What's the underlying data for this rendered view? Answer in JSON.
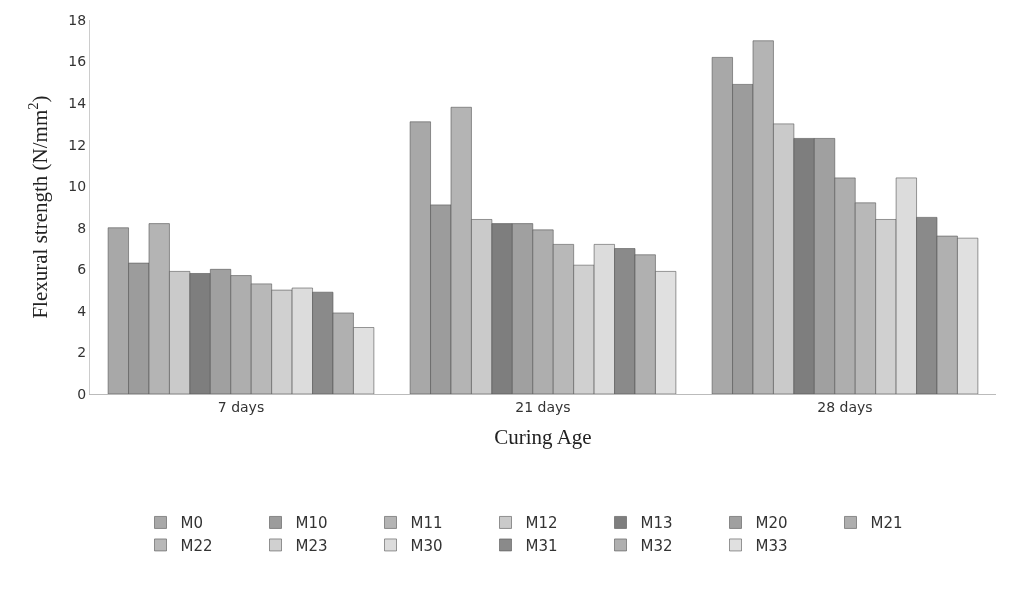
{
  "chart_data": {
    "type": "bar",
    "xlabel": "Curing Age",
    "ylabel": "Flexural strength (N/mm$^{2}$)",
    "categories": [
      "7 days",
      "21 days",
      "28 days"
    ],
    "ylim": [
      0,
      18
    ],
    "yticks": [
      0,
      2,
      4,
      6,
      8,
      10,
      12,
      14,
      16,
      18
    ],
    "grid": false,
    "legend": "bottom",
    "series": [
      {
        "name": "M0",
        "color": "#a8a8a8",
        "values": [
          8.0,
          13.1,
          16.2
        ]
      },
      {
        "name": "M10",
        "color": "#9c9c9c",
        "values": [
          6.3,
          9.1,
          14.9
        ]
      },
      {
        "name": "M11",
        "color": "#b4b4b4",
        "values": [
          8.2,
          13.8,
          17.0
        ]
      },
      {
        "name": "M12",
        "color": "#cacaca",
        "values": [
          5.9,
          8.4,
          13.0
        ]
      },
      {
        "name": "M13",
        "color": "#7e7e7e",
        "values": [
          5.8,
          8.2,
          12.3
        ]
      },
      {
        "name": "M20",
        "color": "#a0a0a0",
        "values": [
          6.0,
          8.2,
          12.3
        ]
      },
      {
        "name": "M21",
        "color": "#aeaeae",
        "values": [
          5.7,
          7.9,
          10.4
        ]
      },
      {
        "name": "M22",
        "color": "#b8b8b8",
        "values": [
          5.3,
          7.2,
          9.2
        ]
      },
      {
        "name": "M23",
        "color": "#d0d0d0",
        "values": [
          5.0,
          6.2,
          8.4
        ]
      },
      {
        "name": "M30",
        "color": "#dcdcdc",
        "values": [
          5.1,
          7.2,
          10.4
        ]
      },
      {
        "name": "M31",
        "color": "#8a8a8a",
        "values": [
          4.9,
          7.0,
          8.5
        ]
      },
      {
        "name": "M32",
        "color": "#b0b0b0",
        "values": [
          3.9,
          6.7,
          7.6
        ]
      },
      {
        "name": "M33",
        "color": "#e0e0e0",
        "values": [
          3.2,
          5.9,
          7.5
        ]
      }
    ]
  }
}
